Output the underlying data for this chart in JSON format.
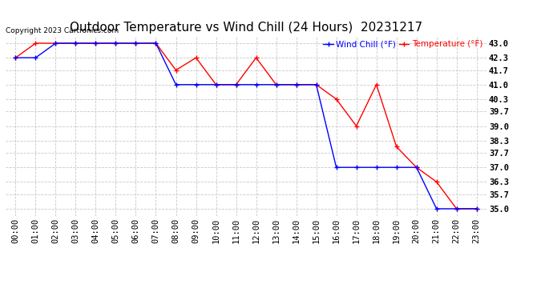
{
  "title": "Outdoor Temperature vs Wind Chill (24 Hours)  20231217",
  "copyright_text": "Copyright 2023 Cartronics.com",
  "legend_wind_chill": "Wind Chill (°F)",
  "legend_temperature": "Temperature (°F)",
  "x_labels": [
    "00:00",
    "01:00",
    "02:00",
    "03:00",
    "04:00",
    "05:00",
    "06:00",
    "07:00",
    "08:00",
    "09:00",
    "10:00",
    "11:00",
    "12:00",
    "13:00",
    "14:00",
    "15:00",
    "16:00",
    "17:00",
    "18:00",
    "19:00",
    "20:00",
    "21:00",
    "22:00",
    "23:00"
  ],
  "temperature_data": [
    [
      0,
      42.3
    ],
    [
      1,
      43.0
    ],
    [
      2,
      43.0
    ],
    [
      3,
      43.0
    ],
    [
      4,
      43.0
    ],
    [
      5,
      43.0
    ],
    [
      6,
      43.0
    ],
    [
      7,
      43.0
    ],
    [
      8,
      41.7
    ],
    [
      9,
      42.3
    ],
    [
      10,
      41.0
    ],
    [
      11,
      41.0
    ],
    [
      12,
      42.3
    ],
    [
      13,
      41.0
    ],
    [
      14,
      41.0
    ],
    [
      15,
      41.0
    ],
    [
      16,
      40.3
    ],
    [
      17,
      39.0
    ],
    [
      18,
      41.0
    ],
    [
      19,
      38.0
    ],
    [
      20,
      37.0
    ],
    [
      21,
      36.3
    ],
    [
      22,
      35.0
    ],
    [
      23,
      35.0
    ]
  ],
  "wind_chill_data": [
    [
      0,
      42.3
    ],
    [
      1,
      42.3
    ],
    [
      2,
      43.0
    ],
    [
      3,
      43.0
    ],
    [
      4,
      43.0
    ],
    [
      5,
      43.0
    ],
    [
      6,
      43.0
    ],
    [
      7,
      43.0
    ],
    [
      8,
      41.0
    ],
    [
      9,
      41.0
    ],
    [
      10,
      41.0
    ],
    [
      11,
      41.0
    ],
    [
      12,
      41.0
    ],
    [
      13,
      41.0
    ],
    [
      14,
      41.0
    ],
    [
      15,
      41.0
    ],
    [
      16,
      37.0
    ],
    [
      17,
      37.0
    ],
    [
      18,
      37.0
    ],
    [
      19,
      37.0
    ],
    [
      20,
      37.0
    ],
    [
      21,
      35.0
    ],
    [
      22,
      35.0
    ],
    [
      23,
      35.0
    ]
  ],
  "ylim": [
    34.65,
    43.35
  ],
  "yticks": [
    35.0,
    35.7,
    36.3,
    37.0,
    37.7,
    38.3,
    39.0,
    39.7,
    40.3,
    41.0,
    41.7,
    42.3,
    43.0
  ],
  "temp_color": "#ff0000",
  "wind_chill_color": "#0000ff",
  "grid_color": "#c8c8c8",
  "background_color": "#ffffff",
  "title_fontsize": 11,
  "tick_fontsize": 7.5,
  "marker": "+"
}
